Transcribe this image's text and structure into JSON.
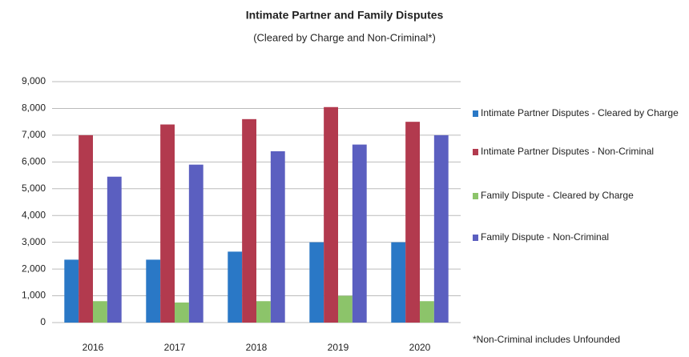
{
  "chart_data": {
    "type": "bar",
    "title": "Intimate Partner and Family Disputes",
    "subtitle": "(Cleared by Charge and Non-Criminal*)",
    "note": "*Non-Criminal includes Unfounded",
    "categories": [
      "2016",
      "2017",
      "2018",
      "2019",
      "2020"
    ],
    "series": [
      {
        "name": "Intimate Partner Disputes - Cleared by Charge",
        "color": "#2a78c6",
        "values": [
          2350,
          2350,
          2650,
          3000,
          3000
        ]
      },
      {
        "name": "Intimate Partner Disputes - Non-Criminal",
        "color": "#b23a4e",
        "values": [
          7000,
          7400,
          7600,
          8050,
          7500
        ]
      },
      {
        "name": "Family Dispute - Cleared by Charge",
        "color": "#8cc46a",
        "values": [
          800,
          750,
          800,
          1000,
          800
        ]
      },
      {
        "name": "Family Dispute - Non-Criminal",
        "color": "#5b5fc0",
        "values": [
          5450,
          5900,
          6400,
          6650,
          7000
        ]
      }
    ],
    "ylim": [
      0,
      9000
    ],
    "yticks": [
      0,
      {
        "value": 1000,
        "label": "1,000"
      },
      {
        "value": 2000,
        "label": "2,000"
      },
      {
        "value": 3000,
        "label": "3,000"
      },
      {
        "value": 4000,
        "label": "4,000"
      },
      {
        "value": 5000,
        "label": "5,000"
      },
      {
        "value": 6000,
        "label": "6,000"
      },
      {
        "value": 7000,
        "label": "7,000"
      },
      {
        "value": 8000,
        "label": "8,000"
      },
      {
        "value": 9000,
        "label": "9,000"
      }
    ],
    "grid": true,
    "legend": "right"
  }
}
